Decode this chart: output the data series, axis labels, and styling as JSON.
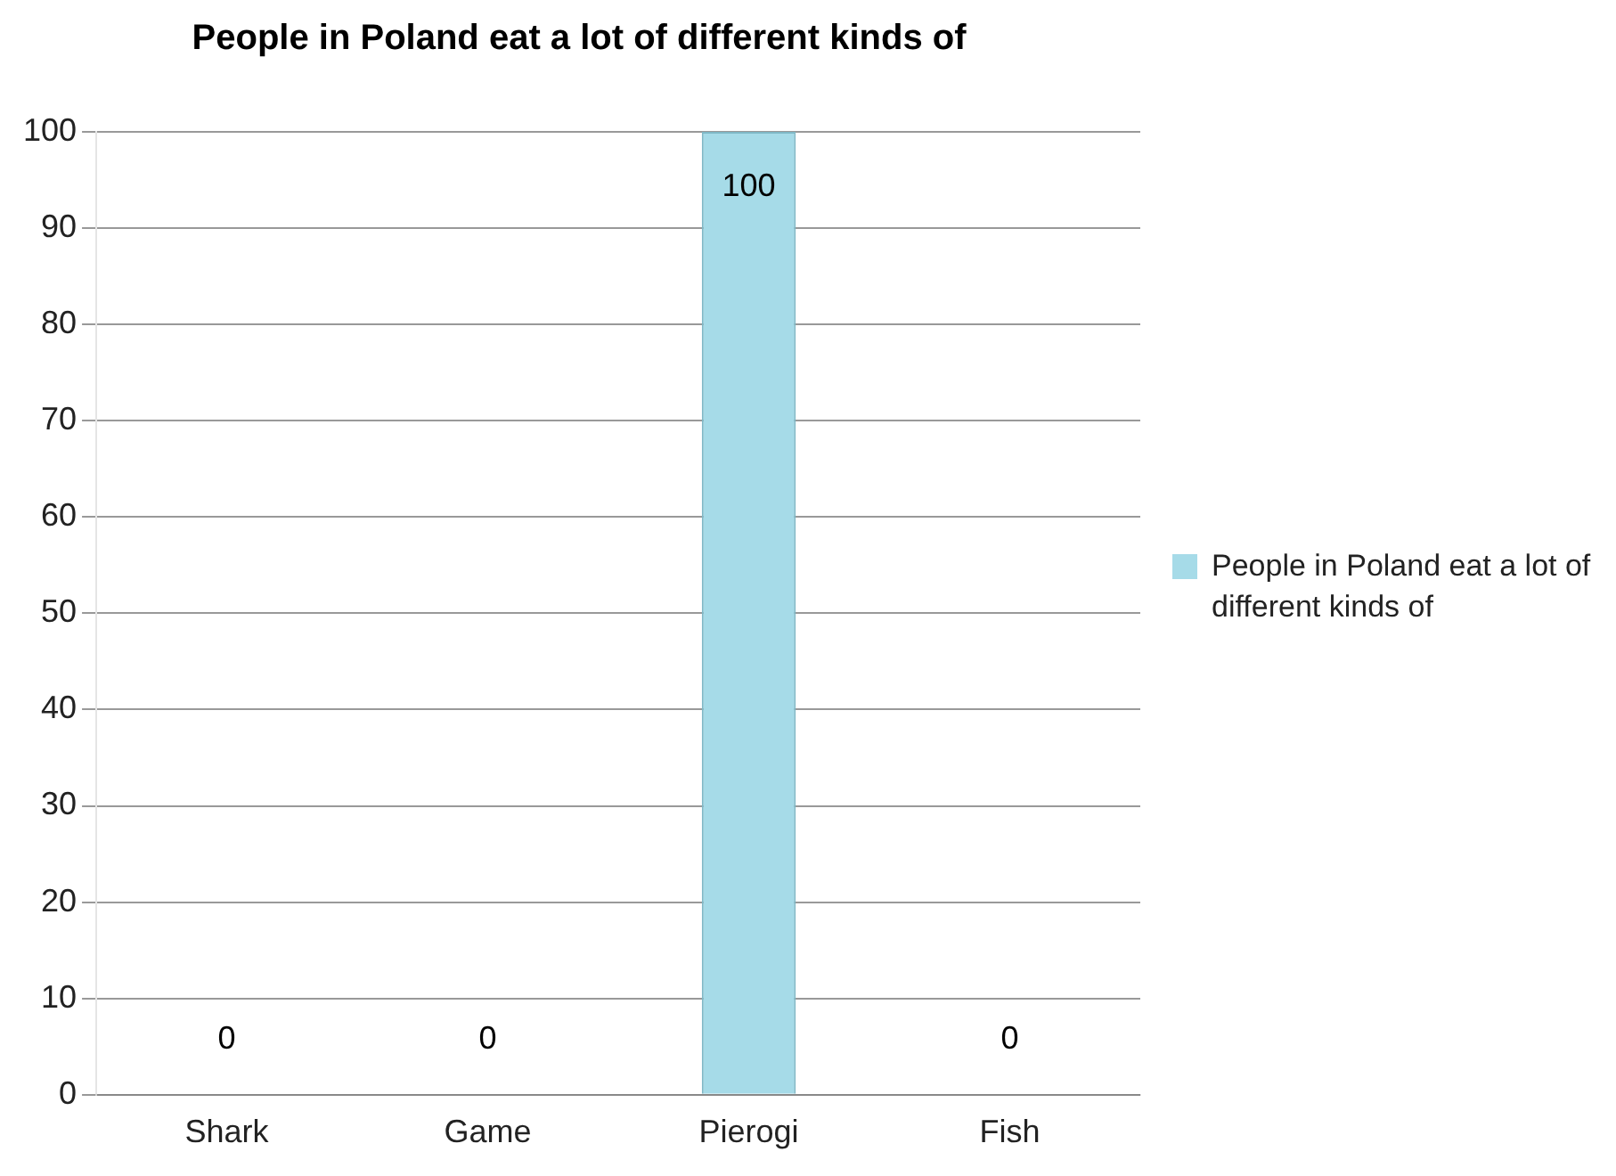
{
  "chart_data": {
    "type": "bar",
    "title": "People in Poland eat a lot of different kinds of",
    "categories": [
      "Shark",
      "Game",
      "Pierogi",
      "Fish"
    ],
    "series": [
      {
        "name": "People in Poland eat a lot of different kinds of",
        "color": "#a6dbe8",
        "values": [
          0,
          0,
          100,
          0
        ]
      }
    ],
    "ylim": [
      0,
      100
    ],
    "yticks": [
      0,
      10,
      20,
      30,
      40,
      50,
      60,
      70,
      80,
      90,
      100
    ],
    "grid": "y",
    "legend": "right",
    "data_labels": true
  }
}
